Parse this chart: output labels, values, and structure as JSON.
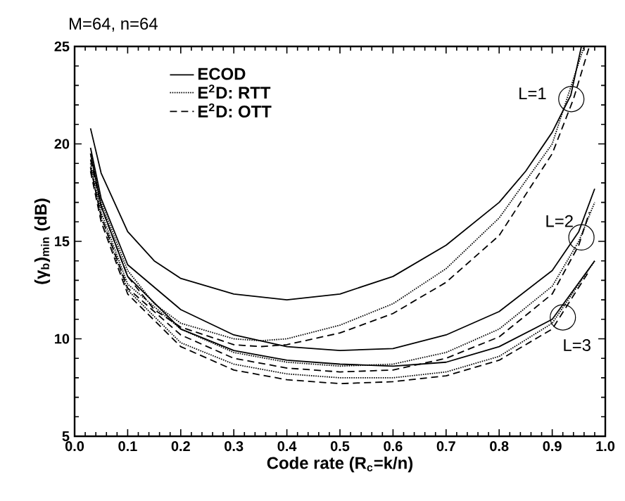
{
  "chart_data": {
    "type": "line",
    "title": "M=64, n=64",
    "xlabel": "Code rate (R$_{c}$=k/n)",
    "ylabel": "(γ$_{b}$)$_{min}$ (dB)",
    "xlim": [
      0,
      1
    ],
    "ylim": [
      5,
      25
    ],
    "xticks": [
      {
        "value": 0,
        "label": "0.0"
      },
      {
        "value": 0.1,
        "label": "0.1"
      },
      {
        "value": 0.2,
        "label": "0.2"
      },
      {
        "value": 0.3,
        "label": "0.3"
      },
      {
        "value": 0.4,
        "label": "0.4"
      },
      {
        "value": 0.5,
        "label": "0.5"
      },
      {
        "value": 0.6,
        "label": "0.6"
      },
      {
        "value": 0.7,
        "label": "0.7"
      },
      {
        "value": 0.8,
        "label": "0.8"
      },
      {
        "value": 0.9,
        "label": "0.9"
      },
      {
        "value": 1,
        "label": "1.0"
      }
    ],
    "yticks": [
      5,
      10,
      15,
      20,
      25
    ],
    "grid": false,
    "legend": "top left",
    "marker": "none",
    "annotations": [
      {
        "text": "L=1",
        "x": 0.936,
        "y": 22.3
      },
      {
        "text": "L=2",
        "x": 0.955,
        "y": 15.2
      },
      {
        "text": "L=3",
        "x": 0.92,
        "y": 11.1
      }
    ],
    "series": [
      {
        "name": "ECOD",
        "color": "#000000",
        "line_style": "solid",
        "x": [
          0.03,
          0.05,
          0.1,
          0.15,
          0.2,
          0.3,
          0.4,
          0.5,
          0.6,
          0.7,
          0.8,
          0.85,
          0.9,
          0.935,
          0.955
        ],
        "values": [
          20.8,
          18.5,
          15.5,
          14.0,
          13.1,
          12.3,
          12.0,
          12.3,
          13.2,
          14.8,
          17.0,
          18.6,
          20.6,
          22.5,
          25
        ]
      },
      {
        "name": "E$^{2}$D: RTT",
        "color": "#000000",
        "line_style": "dotted",
        "x": [
          0.03,
          0.05,
          0.1,
          0.15,
          0.2,
          0.3,
          0.35,
          0.4,
          0.5,
          0.6,
          0.7,
          0.8,
          0.9,
          0.96
        ],
        "values": [
          19.5,
          17,
          13.5,
          11.8,
          10.8,
          10.0,
          9.9,
          10.0,
          10.7,
          11.8,
          13.6,
          16.2,
          20.0,
          25
        ]
      },
      {
        "name": "E$^{2}$D: OTT",
        "color": "#000000",
        "line_style": "dashed",
        "x": [
          0.03,
          0.05,
          0.1,
          0.15,
          0.2,
          0.3,
          0.35,
          0.4,
          0.5,
          0.6,
          0.7,
          0.8,
          0.9,
          0.94,
          0.97
        ],
        "values": [
          19.2,
          16.8,
          13.2,
          11.5,
          10.6,
          9.7,
          9.6,
          9.7,
          10.3,
          11.3,
          12.9,
          15.3,
          19.5,
          22.3,
          25
        ]
      },
      {
        "color": "#000000",
        "line_style": "solid",
        "x": [
          0.03,
          0.05,
          0.1,
          0.2,
          0.3,
          0.4,
          0.5,
          0.6,
          0.7,
          0.8,
          0.9,
          0.95,
          0.98
        ],
        "values": [
          19.8,
          17.2,
          13.8,
          11.5,
          10.2,
          9.6,
          9.4,
          9.5,
          10.2,
          11.4,
          13.5,
          15.5,
          17.7
        ]
      },
      {
        "color": "#000000",
        "line_style": "dotted",
        "x": [
          0.03,
          0.05,
          0.1,
          0.2,
          0.3,
          0.4,
          0.5,
          0.6,
          0.7,
          0.8,
          0.9,
          0.95,
          0.98
        ],
        "values": [
          19,
          16.5,
          12.8,
          10.5,
          9.3,
          8.8,
          8.6,
          8.7,
          9.3,
          10.5,
          12.7,
          15.0,
          17.0
        ]
      },
      {
        "color": "#000000",
        "line_style": "dashed",
        "x": [
          0.03,
          0.05,
          0.1,
          0.2,
          0.3,
          0.4,
          0.5,
          0.6,
          0.7,
          0.8,
          0.9,
          0.95,
          0.97
        ],
        "values": [
          18.8,
          16.3,
          12.6,
          10.2,
          9.0,
          8.5,
          8.3,
          8.4,
          9.0,
          10.1,
          12.3,
          14.8,
          16.5
        ]
      },
      {
        "color": "#000000",
        "line_style": "solid",
        "x": [
          0.03,
          0.05,
          0.1,
          0.2,
          0.3,
          0.4,
          0.5,
          0.6,
          0.7,
          0.8,
          0.9,
          0.98
        ],
        "values": [
          19.5,
          16.8,
          13.2,
          10.5,
          9.4,
          8.9,
          8.7,
          8.6,
          8.8,
          9.6,
          11.0,
          14.0
        ]
      },
      {
        "color": "#000000",
        "line_style": "dotted",
        "x": [
          0.03,
          0.05,
          0.1,
          0.2,
          0.3,
          0.4,
          0.5,
          0.6,
          0.7,
          0.8,
          0.9,
          0.98
        ],
        "values": [
          18.8,
          16.2,
          12.5,
          9.8,
          8.7,
          8.2,
          8.0,
          8.0,
          8.3,
          9.1,
          10.8,
          14.0
        ]
      },
      {
        "color": "#000000",
        "line_style": "dashed",
        "x": [
          0.03,
          0.05,
          0.1,
          0.2,
          0.3,
          0.4,
          0.5,
          0.6,
          0.7,
          0.8,
          0.9,
          0.97
        ],
        "values": [
          18.6,
          16.0,
          12.3,
          9.6,
          8.4,
          7.9,
          7.7,
          7.8,
          8.1,
          8.9,
          10.5,
          13.5
        ]
      }
    ]
  }
}
